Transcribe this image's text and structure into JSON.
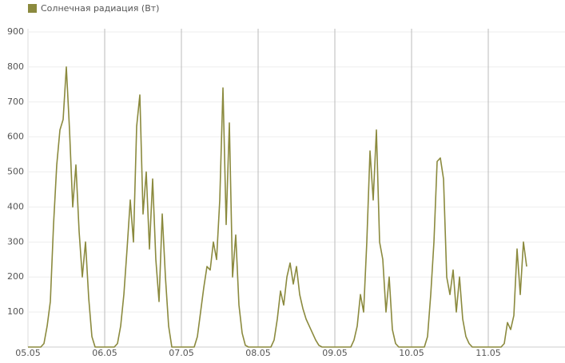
{
  "chart_data": {
    "type": "line",
    "categories": [
      "05.05",
      null,
      null,
      null,
      null,
      null,
      null,
      null,
      null,
      null,
      null,
      null,
      null,
      null,
      null,
      null,
      null,
      null,
      null,
      null,
      null,
      null,
      null,
      null,
      "06.05",
      null,
      null,
      null,
      null,
      null,
      null,
      null,
      null,
      null,
      null,
      null,
      null,
      null,
      null,
      null,
      null,
      null,
      null,
      null,
      null,
      null,
      null,
      null,
      "07.05",
      null,
      null,
      null,
      null,
      null,
      null,
      null,
      null,
      null,
      null,
      null,
      null,
      null,
      null,
      null,
      null,
      null,
      null,
      null,
      null,
      null,
      null,
      null,
      "08.05",
      null,
      null,
      null,
      null,
      null,
      null,
      null,
      null,
      null,
      null,
      null,
      null,
      null,
      null,
      null,
      null,
      null,
      null,
      null,
      null,
      null,
      null,
      null,
      "09.05",
      null,
      null,
      null,
      null,
      null,
      null,
      null,
      null,
      null,
      null,
      null,
      null,
      null,
      null,
      null,
      null,
      null,
      null,
      null,
      null,
      null,
      null,
      null,
      "10.05",
      null,
      null,
      null,
      null,
      null,
      null,
      null,
      null,
      null,
      null,
      null,
      null,
      null,
      null,
      null,
      null,
      null,
      null,
      null,
      null,
      null,
      null,
      null,
      "11.05",
      null,
      null,
      null,
      null,
      null,
      null,
      null,
      null,
      null,
      null,
      null,
      null
    ],
    "series": [
      {
        "name": "Солнечная радиация (Вт)",
        "color": "#8b8a3e",
        "values": [
          0,
          0,
          0,
          0,
          0,
          10,
          60,
          130,
          350,
          520,
          620,
          650,
          800,
          620,
          400,
          520,
          330,
          200,
          300,
          140,
          30,
          0,
          0,
          0,
          0,
          0,
          0,
          0,
          10,
          60,
          150,
          280,
          420,
          300,
          630,
          720,
          380,
          500,
          280,
          480,
          250,
          130,
          380,
          200,
          60,
          0,
          0,
          0,
          0,
          0,
          0,
          0,
          0,
          30,
          100,
          170,
          230,
          220,
          300,
          250,
          420,
          740,
          350,
          640,
          200,
          320,
          120,
          40,
          5,
          0,
          0,
          0,
          0,
          0,
          0,
          0,
          0,
          20,
          80,
          160,
          120,
          200,
          240,
          180,
          230,
          150,
          110,
          80,
          60,
          40,
          20,
          5,
          0,
          0,
          0,
          0,
          0,
          0,
          0,
          0,
          0,
          0,
          20,
          60,
          150,
          100,
          300,
          560,
          420,
          620,
          300,
          250,
          100,
          200,
          50,
          10,
          0,
          0,
          0,
          0,
          0,
          0,
          0,
          0,
          0,
          30,
          150,
          300,
          530,
          540,
          480,
          200,
          150,
          220,
          100,
          200,
          80,
          30,
          10,
          0,
          0,
          0,
          0,
          0,
          0,
          0,
          0,
          0,
          0,
          10,
          70,
          50,
          90,
          280,
          150,
          300,
          230
        ]
      }
    ],
    "ylim": [
      0,
      900
    ],
    "yticks": [
      100,
      200,
      300,
      400,
      500,
      600,
      700,
      800,
      900
    ],
    "grid": true
  }
}
